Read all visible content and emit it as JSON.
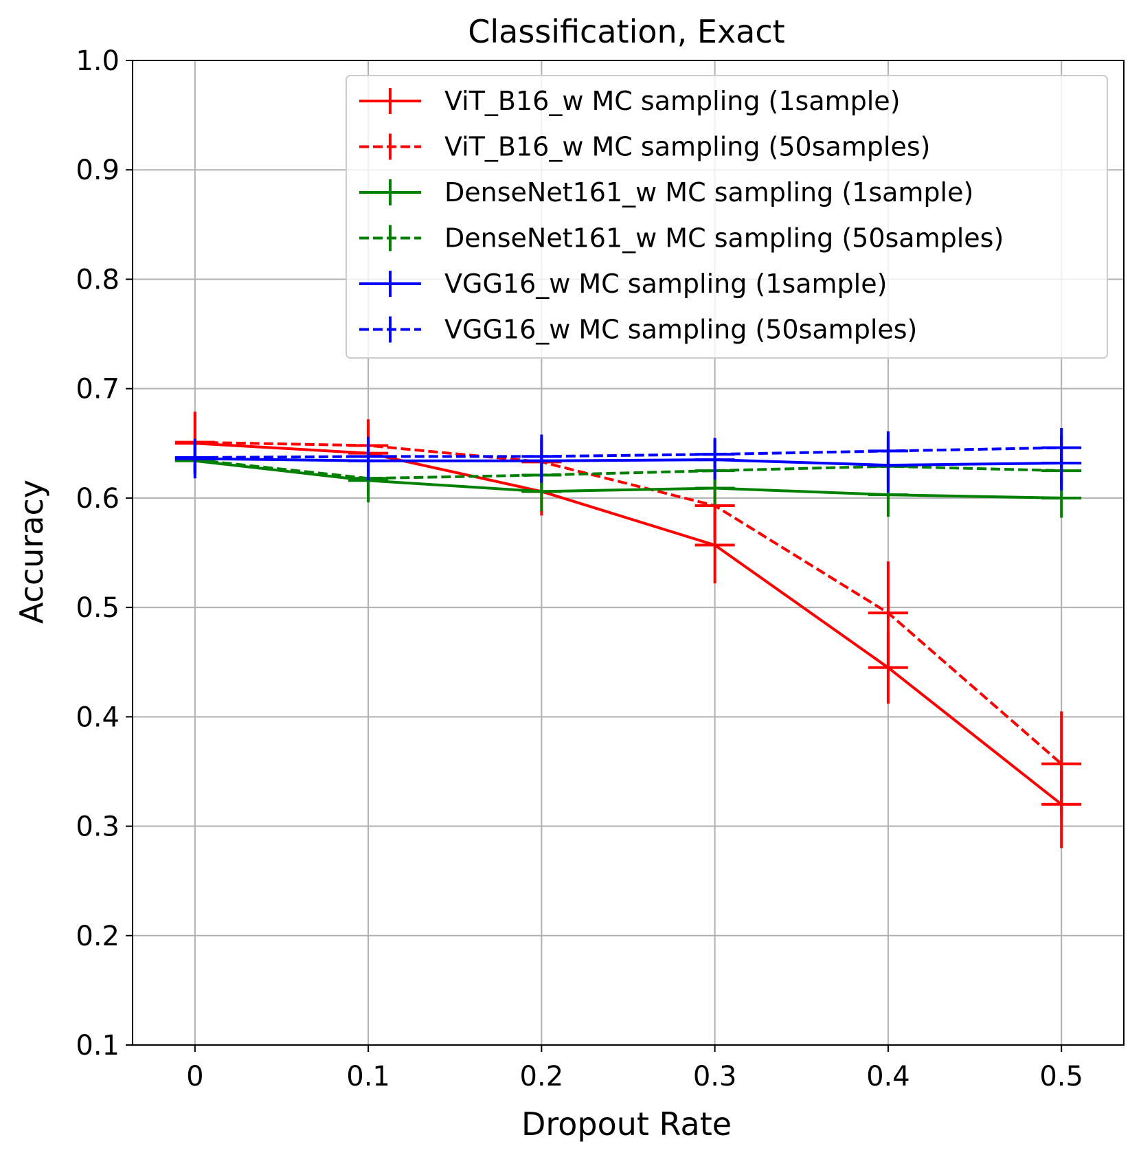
{
  "chart_data": {
    "type": "line",
    "title": "Classification, Exact",
    "xlabel": "Dropout Rate",
    "ylabel": "Accuracy",
    "xlim": [
      -0.036,
      0.536
    ],
    "ylim": [
      0.1,
      1.0
    ],
    "grid": true,
    "legend_position": "top-right",
    "x": [
      0,
      0.1,
      0.2,
      0.3,
      0.4,
      0.5
    ],
    "x_tick_labels": [
      "0",
      "0.1",
      "0.2",
      "0.3",
      "0.4",
      "0.5"
    ],
    "y_ticks": [
      0.1,
      0.2,
      0.3,
      0.4,
      0.5,
      0.6,
      0.7,
      0.8,
      0.9,
      1.0
    ],
    "y_tick_labels": [
      "0.1",
      "0.2",
      "0.3",
      "0.4",
      "0.5",
      "0.6",
      "0.7",
      "0.8",
      "0.9",
      "1.0"
    ],
    "series": [
      {
        "name": "ViT_B16_w MC sampling (1sample)",
        "color": "#ff0000",
        "dashed": false,
        "values": [
          0.65,
          0.641,
          0.606,
          0.557,
          0.445,
          0.32
        ],
        "errors": [
          0.028,
          0.025,
          0.022,
          0.035,
          0.033,
          0.04
        ]
      },
      {
        "name": "ViT_B16_w MC sampling (50samples)",
        "color": "#ff0000",
        "dashed": true,
        "values": [
          0.651,
          0.648,
          0.633,
          0.593,
          0.495,
          0.357
        ],
        "errors": [
          0.028,
          0.024,
          0.02,
          0.032,
          0.047,
          0.048
        ]
      },
      {
        "name": "DenseNet161_w MC sampling (1sample)",
        "color": "#008000",
        "dashed": false,
        "values": [
          0.634,
          0.616,
          0.606,
          0.609,
          0.603,
          0.6
        ],
        "errors": [
          0.012,
          0.02,
          0.018,
          0.015,
          0.02,
          0.018
        ]
      },
      {
        "name": "DenseNet161_w MC sampling (50samples)",
        "color": "#008000",
        "dashed": true,
        "values": [
          0.635,
          0.618,
          0.621,
          0.625,
          0.629,
          0.625
        ],
        "errors": [
          0.01,
          0.015,
          0.015,
          0.012,
          0.015,
          0.012
        ]
      },
      {
        "name": "VGG16_w MC sampling (1sample)",
        "color": "#0000ff",
        "dashed": false,
        "values": [
          0.636,
          0.634,
          0.634,
          0.635,
          0.63,
          0.632
        ],
        "errors": [
          0.018,
          0.018,
          0.02,
          0.018,
          0.025,
          0.025
        ]
      },
      {
        "name": "VGG16_w MC sampling (50samples)",
        "color": "#0000ff",
        "dashed": true,
        "values": [
          0.637,
          0.638,
          0.638,
          0.64,
          0.643,
          0.646
        ],
        "errors": [
          0.015,
          0.018,
          0.02,
          0.015,
          0.018,
          0.018
        ]
      }
    ]
  }
}
